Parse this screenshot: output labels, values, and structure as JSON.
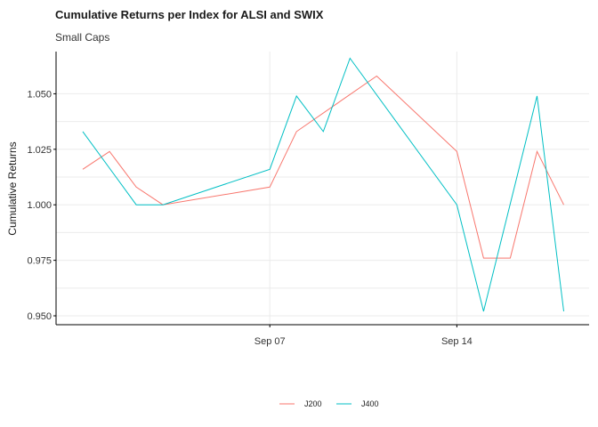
{
  "chart_data": {
    "type": "line",
    "title": "Cumulative Returns per Index for ALSI and SWIX",
    "subtitle": "Small Caps",
    "xlabel": "",
    "ylabel": "Cumulative Returns",
    "x": [
      "2020-08-31",
      "2020-09-01",
      "2020-09-02",
      "2020-09-03",
      "2020-09-04",
      "2020-09-07",
      "2020-09-08",
      "2020-09-09",
      "2020-09-10",
      "2020-09-11",
      "2020-09-14",
      "2020-09-15",
      "2020-09-16",
      "2020-09-17",
      "2020-09-18"
    ],
    "x_ticks": [
      {
        "value": "2020-09-07",
        "label": "Sep 07"
      },
      {
        "value": "2020-09-14",
        "label": "Sep 14"
      }
    ],
    "y_ticks": [
      0.95,
      0.975,
      1.0,
      1.025,
      1.05
    ],
    "y_tick_labels": [
      "0.950",
      "0.975",
      "1.000",
      "1.025",
      "1.050"
    ],
    "ylim": [
      0.946,
      1.069
    ],
    "grid": true,
    "legend": "bottom",
    "series": [
      {
        "name": "J200",
        "color": "#F8766D",
        "points": [
          [
            "2020-08-31",
            1.016
          ],
          [
            "2020-09-01",
            1.024
          ],
          [
            "2020-09-02",
            1.008
          ],
          [
            "2020-09-03",
            1.0
          ],
          [
            "2020-09-07",
            1.008
          ],
          [
            "2020-09-08",
            1.033
          ],
          [
            "2020-09-11",
            1.058
          ],
          [
            "2020-09-14",
            1.024
          ],
          [
            "2020-09-15",
            0.976
          ],
          [
            "2020-09-16",
            0.976
          ],
          [
            "2020-09-17",
            1.024
          ],
          [
            "2020-09-18",
            1.0
          ]
        ]
      },
      {
        "name": "J400",
        "color": "#00BFC4",
        "points": [
          [
            "2020-08-31",
            1.033
          ],
          [
            "2020-09-02",
            1.0
          ],
          [
            "2020-09-03",
            1.0
          ],
          [
            "2020-09-07",
            1.016
          ],
          [
            "2020-09-08",
            1.049
          ],
          [
            "2020-09-09",
            1.033
          ],
          [
            "2020-09-10",
            1.066
          ],
          [
            "2020-09-14",
            1.0
          ],
          [
            "2020-09-15",
            0.952
          ],
          [
            "2020-09-17",
            1.049
          ],
          [
            "2020-09-18",
            0.952
          ]
        ]
      }
    ]
  }
}
